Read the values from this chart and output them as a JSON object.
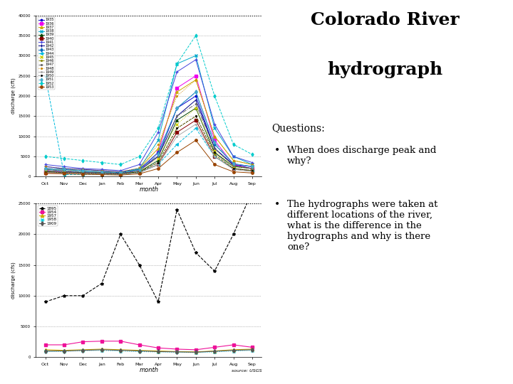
{
  "title_line1": "Colorado River",
  "title_line2": "hydrograph",
  "questions_header": "Questions:",
  "bullet1": "When does discharge peak and\nwhy?",
  "bullet2": "The hydrographs were taken at\ndifferent locations of the river,\nwhat is the difference in the\nhydrographs and why is there\none?",
  "months": [
    "Oct",
    "Nov",
    "Dec",
    "Jan",
    "Feb",
    "Mar",
    "Apr",
    "May",
    "Jun",
    "Jul",
    "Aug",
    "Sep"
  ],
  "chart1_ylabel": "discharge (cft)",
  "chart1_xlabel": "month",
  "chart1_ylim": [
    0,
    40000
  ],
  "chart2_ylabel": "discharge (cfs)",
  "chart2_xlabel": "month",
  "chart2_ylim": [
    0,
    25000
  ],
  "source_text": "source: USGS",
  "chart1_years": [
    "1935",
    "1936",
    "1937",
    "1938",
    "1939",
    "1940",
    "1941",
    "1942",
    "1943",
    "1944",
    "1945",
    "1946",
    "1947",
    "1948",
    "1949",
    "1950",
    "1951",
    "1952",
    "1953"
  ],
  "chart2_years": [
    "1895",
    "1954",
    "1957",
    "1958",
    "1909"
  ],
  "bg_color": "#ffffff",
  "chart1_data": {
    "1935": [
      2500,
      2000,
      1800,
      1500,
      1200,
      2000,
      5000,
      17000,
      20000,
      7000,
      3000,
      2500
    ],
    "1936": [
      1500,
      1200,
      1000,
      900,
      800,
      1500,
      6000,
      22000,
      25000,
      9000,
      3000,
      2000
    ],
    "1937": [
      2000,
      1800,
      1500,
      1200,
      1000,
      2000,
      7000,
      21000,
      24000,
      10000,
      4000,
      3000
    ],
    "1938": [
      1800,
      1500,
      1200,
      1000,
      900,
      2000,
      9000,
      28000,
      30000,
      12000,
      5000,
      3000
    ],
    "1939": [
      1200,
      1000,
      900,
      800,
      700,
      1200,
      4000,
      14000,
      17000,
      6000,
      2500,
      2000
    ],
    "1940": [
      1000,
      900,
      800,
      700,
      600,
      1000,
      3000,
      11000,
      14000,
      5000,
      2000,
      1500
    ],
    "1941": [
      3000,
      2500,
      2000,
      1800,
      1500,
      3000,
      11000,
      26000,
      29000,
      13000,
      5000,
      3500
    ],
    "1942": [
      1500,
      1200,
      1000,
      900,
      800,
      1500,
      5000,
      15000,
      19000,
      7000,
      2800,
      2000
    ],
    "1943": [
      2000,
      1800,
      1500,
      1200,
      1000,
      1800,
      6000,
      17000,
      21000,
      8000,
      3200,
      2500
    ],
    "1944": [
      25000,
      500,
      500,
      500,
      500,
      1000,
      3000,
      8000,
      12000,
      5000,
      2000,
      1500
    ],
    "1945": [
      1500,
      1200,
      1000,
      900,
      800,
      1400,
      4500,
      13000,
      17000,
      6500,
      2500,
      2000
    ],
    "1946": [
      1200,
      1000,
      900,
      800,
      700,
      1100,
      3500,
      12000,
      15000,
      5500,
      2000,
      1500
    ],
    "1947": [
      1800,
      1500,
      1200,
      1000,
      900,
      1600,
      5000,
      15000,
      18000,
      7000,
      2800,
      2000
    ],
    "1948": [
      2500,
      2000,
      1800,
      1500,
      1200,
      2200,
      8000,
      20000,
      24000,
      10000,
      4000,
      3000
    ],
    "1949": [
      1000,
      900,
      800,
      700,
      600,
      1000,
      3000,
      10000,
      13000,
      5000,
      1800,
      1200
    ],
    "1950": [
      1200,
      1000,
      900,
      800,
      700,
      1100,
      3500,
      12000,
      15000,
      6000,
      2000,
      1500
    ],
    "1951": [
      2000,
      1800,
      1500,
      1200,
      1000,
      1600,
      5500,
      17000,
      21000,
      8500,
      3200,
      2500
    ],
    "1952": [
      5000,
      4500,
      4000,
      3500,
      3000,
      5000,
      12000,
      28000,
      35000,
      20000,
      8000,
      5500
    ],
    "1953": [
      800,
      700,
      600,
      500,
      400,
      700,
      2000,
      6000,
      9000,
      3000,
      1200,
      900
    ]
  },
  "chart2_data": {
    "1895": [
      9000,
      10000,
      10000,
      12000,
      20000,
      15000,
      9000,
      24000,
      17000,
      14000,
      20000,
      27000
    ],
    "1954": [
      2000,
      2000,
      2500,
      2600,
      2600,
      2000,
      1500,
      1300,
      1200,
      1600,
      2000,
      1600
    ],
    "1957": [
      1200,
      1100,
      1200,
      1300,
      1200,
      1100,
      1000,
      900,
      850,
      1000,
      1200,
      1300
    ],
    "1958": [
      900,
      950,
      1050,
      1100,
      1000,
      900,
      850,
      800,
      750,
      850,
      1000,
      1100
    ],
    "1909": [
      1000,
      1000,
      1100,
      1200,
      1100,
      1000,
      900,
      850,
      800,
      950,
      1100,
      1200
    ]
  },
  "chart1_colors": [
    "#0000cc",
    "#ee00ee",
    "#ccaa00",
    "#00aacc",
    "#004400",
    "#880000",
    "#4444dd",
    "#000088",
    "#0066bb",
    "#00bbdd",
    "#cccc00",
    "#888800",
    "#666666",
    "#cc8800",
    "#aaaaaa",
    "#111111",
    "#44aacc",
    "#00cccc",
    "#994400"
  ],
  "chart1_linestyles": [
    "-",
    "-",
    "-",
    "-",
    "-",
    "-",
    "-",
    "-",
    "-",
    "--",
    ":",
    "--",
    "-.",
    ":",
    "-",
    ":",
    "-.",
    "--",
    "*"
  ],
  "chart1_markers": [
    "*",
    "s",
    "^",
    "x",
    "^",
    "s",
    "+",
    "|",
    "d",
    "<",
    "x",
    ".",
    ".",
    ".",
    ".",
    ".",
    "d",
    "d",
    "o"
  ],
  "chart2_colors": [
    "#000000",
    "#ee1199",
    "#ccaa00",
    "#00ccdd",
    "#555555"
  ],
  "chart2_linestyles": [
    "--",
    "-",
    "-",
    ":",
    "-"
  ],
  "chart2_markers": [
    "*",
    "s",
    "^",
    "x",
    "d"
  ]
}
